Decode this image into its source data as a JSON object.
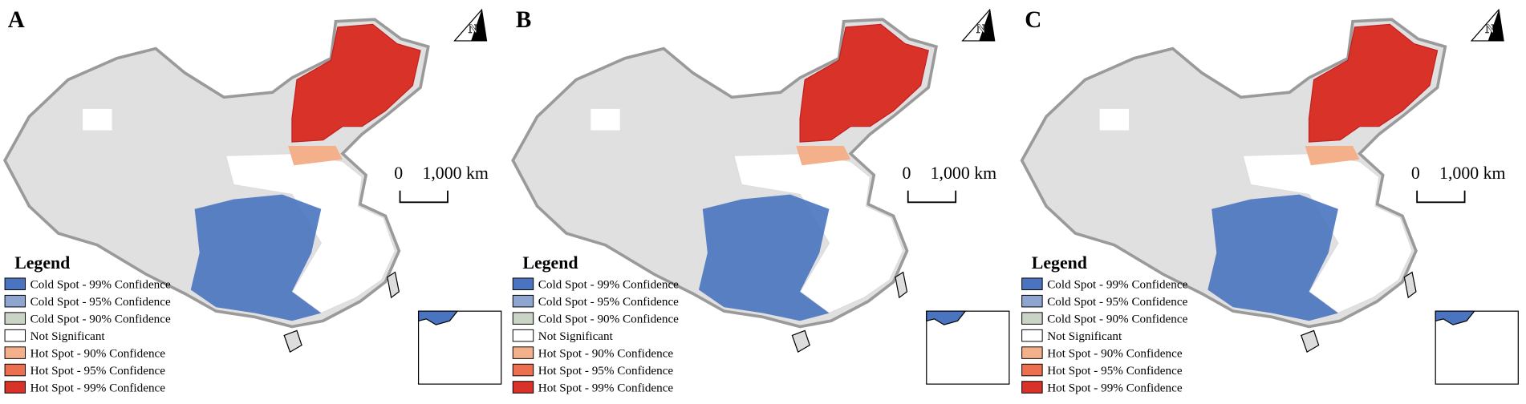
{
  "panels": [
    {
      "label": "A",
      "north": "N",
      "scale": {
        "start": "0",
        "end": "1,000 km"
      },
      "legend": {
        "title": "Legend",
        "items": [
          {
            "label": "Cold Spot - 99% Confidence",
            "color": "#4a74c0"
          },
          {
            "label": "Cold Spot - 95% Confidence",
            "color": "#8ea6cf"
          },
          {
            "label": "Cold Spot - 90% Confidence",
            "color": "#c9d3c6"
          },
          {
            "label": "Not Significant",
            "color": "#ffffff"
          },
          {
            "label": "Hot Spot - 90% Confidence",
            "color": "#f4b08a"
          },
          {
            "label": "Hot Spot - 95% Confidence",
            "color": "#ec7050"
          },
          {
            "label": "Hot Spot - 99% Confidence",
            "color": "#d93228"
          }
        ]
      }
    },
    {
      "label": "B",
      "north": "N",
      "scale": {
        "start": "0",
        "end": "1,000 km"
      },
      "legend": {
        "title": "Legend",
        "items": [
          {
            "label": "Cold Spot - 99% Confidence",
            "color": "#4a74c0"
          },
          {
            "label": "Cold Spot - 95% Confidence",
            "color": "#8ea6cf"
          },
          {
            "label": "Cold Spot - 90% Confidence",
            "color": "#c9d3c6"
          },
          {
            "label": "Not Significant",
            "color": "#ffffff"
          },
          {
            "label": "Hot Spot - 90% Confidence",
            "color": "#f4b08a"
          },
          {
            "label": "Hot Spot - 95% Confidence",
            "color": "#ec7050"
          },
          {
            "label": "Hot Spot - 99% Confidence",
            "color": "#d93228"
          }
        ]
      }
    },
    {
      "label": "C",
      "north": "N",
      "scale": {
        "start": "0",
        "end": "1,000 km"
      },
      "legend": {
        "title": "Legend",
        "items": [
          {
            "label": "Cold Spot - 99% Confidence",
            "color": "#4a74c0"
          },
          {
            "label": "Cold Spot - 95% Confidence",
            "color": "#8ea6cf"
          },
          {
            "label": "Cold Spot - 90% Confidence",
            "color": "#c9d3c6"
          },
          {
            "label": "Not Significant",
            "color": "#ffffff"
          },
          {
            "label": "Hot Spot - 90% Confidence",
            "color": "#f4b08a"
          },
          {
            "label": "Hot Spot - 95% Confidence",
            "color": "#ec7050"
          },
          {
            "label": "Hot Spot - 99% Confidence",
            "color": "#d93228"
          }
        ]
      }
    }
  ]
}
